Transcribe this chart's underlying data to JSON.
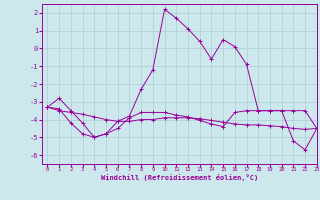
{
  "xlabel": "Windchill (Refroidissement éolien,°C)",
  "xlim": [
    -0.5,
    23
  ],
  "ylim": [
    -6.5,
    2.5
  ],
  "yticks": [
    2,
    1,
    0,
    -1,
    -2,
    -3,
    -4,
    -5,
    -6
  ],
  "xticks": [
    0,
    1,
    2,
    3,
    4,
    5,
    6,
    7,
    8,
    9,
    10,
    11,
    12,
    13,
    14,
    15,
    16,
    17,
    18,
    19,
    20,
    21,
    22,
    23
  ],
  "background_color": "#cde8ec",
  "grid_color": "#aacdd3",
  "line_color": "#990099",
  "line1_x": [
    0,
    1,
    2,
    3,
    4,
    5,
    6,
    7,
    8,
    9,
    10,
    11,
    12,
    13,
    14,
    15,
    16,
    17,
    18,
    19,
    20,
    21,
    22,
    23
  ],
  "line1_y": [
    -3.3,
    -2.8,
    -3.5,
    -4.2,
    -5.0,
    -4.8,
    -4.1,
    -3.8,
    -2.3,
    -1.2,
    2.2,
    1.7,
    1.1,
    0.4,
    -0.6,
    0.5,
    0.1,
    -0.9,
    -3.5,
    -3.5,
    -3.5,
    -5.2,
    -5.7,
    -4.5
  ],
  "line2_x": [
    0,
    1,
    2,
    3,
    4,
    5,
    6,
    7,
    8,
    9,
    10,
    11,
    12,
    13,
    14,
    15,
    16,
    17,
    18,
    19,
    20,
    21,
    22,
    23
  ],
  "line2_y": [
    -3.3,
    -3.5,
    -3.6,
    -3.7,
    -3.85,
    -4.0,
    -4.1,
    -4.1,
    -4.0,
    -4.0,
    -3.9,
    -3.9,
    -3.9,
    -3.95,
    -4.05,
    -4.15,
    -4.25,
    -4.3,
    -4.3,
    -4.35,
    -4.4,
    -4.5,
    -4.55,
    -4.5
  ],
  "line3_x": [
    0,
    1,
    2,
    3,
    4,
    5,
    6,
    7,
    8,
    9,
    10,
    11,
    12,
    13,
    14,
    15,
    16,
    17,
    18,
    19,
    20,
    21,
    22,
    23
  ],
  "line3_y": [
    -3.3,
    -3.4,
    -4.2,
    -4.8,
    -5.0,
    -4.8,
    -4.5,
    -3.9,
    -3.6,
    -3.6,
    -3.6,
    -3.75,
    -3.85,
    -4.05,
    -4.25,
    -4.4,
    -3.6,
    -3.5,
    -3.5,
    -3.5,
    -3.5,
    -3.5,
    -3.5,
    -4.5
  ]
}
